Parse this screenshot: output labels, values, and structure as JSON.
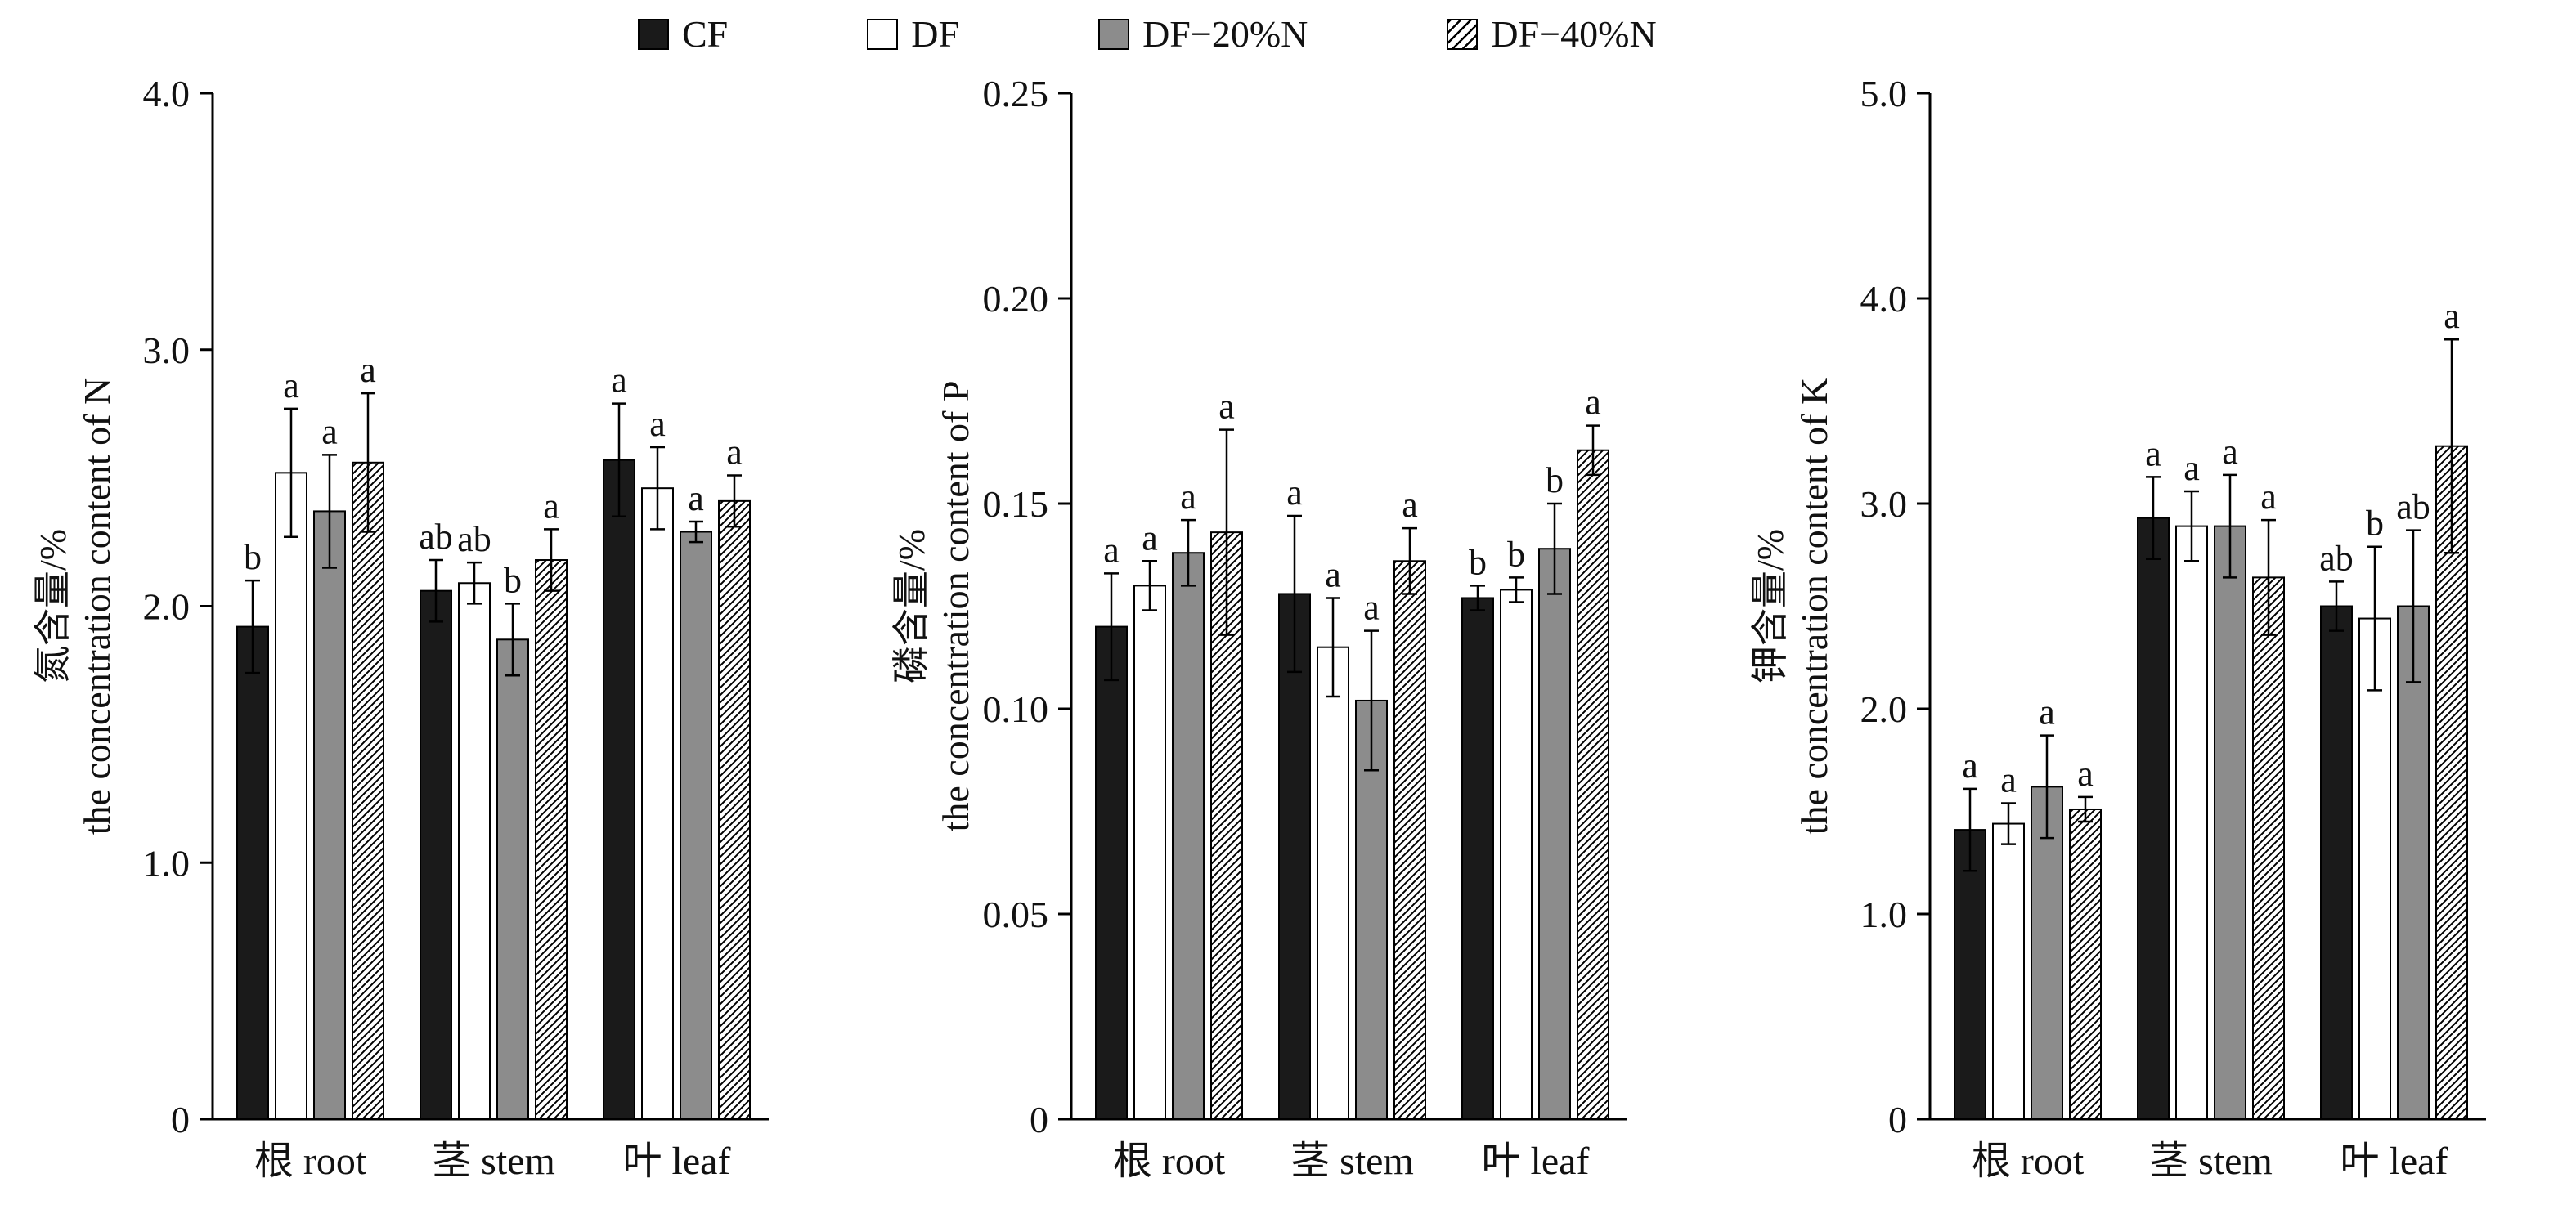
{
  "legend": {
    "items": [
      {
        "label": "CF",
        "fill": "#1a1a1a",
        "hatch": false
      },
      {
        "label": "DF",
        "fill": "#ffffff",
        "hatch": false
      },
      {
        "label": "DF−20%N",
        "fill": "#8c8c8c",
        "hatch": false
      },
      {
        "label": "DF−40%N",
        "fill": "#ffffff",
        "hatch": true
      }
    ]
  },
  "colors": {
    "bar_black": "#1a1a1a",
    "bar_white": "#ffffff",
    "bar_gray": "#8c8c8c",
    "outline": "#000000",
    "background": "#ffffff"
  },
  "chart_data": [
    {
      "type": "bar",
      "panel": "N",
      "ylabel_zh": "氮含量/%",
      "ylabel_en": "the concentration content of N",
      "ylim": [
        0,
        4.0
      ],
      "yticks": [
        0,
        1.0,
        2.0,
        3.0,
        4.0
      ],
      "ytick_labels": [
        "0",
        "1.0",
        "2.0",
        "3.0",
        "4.0"
      ],
      "categories": [
        "根 root",
        "茎 stem",
        "叶 leaf"
      ],
      "legend_position": "top",
      "grid": false,
      "series": [
        {
          "name": "CF",
          "fill": "#1a1a1a",
          "hatch": false,
          "values": [
            1.92,
            2.06,
            2.57
          ],
          "errors": [
            0.18,
            0.12,
            0.22
          ],
          "letters": [
            "b",
            "ab",
            "a"
          ]
        },
        {
          "name": "DF",
          "fill": "#ffffff",
          "hatch": false,
          "values": [
            2.52,
            2.09,
            2.46
          ],
          "errors": [
            0.25,
            0.08,
            0.16
          ],
          "letters": [
            "a",
            "ab",
            "a"
          ]
        },
        {
          "name": "DF−20%N",
          "fill": "#8c8c8c",
          "hatch": false,
          "values": [
            2.37,
            1.87,
            2.29
          ],
          "errors": [
            0.22,
            0.14,
            0.04
          ],
          "letters": [
            "a",
            "b",
            "a"
          ]
        },
        {
          "name": "DF−40%N",
          "fill": "#ffffff",
          "hatch": true,
          "values": [
            2.56,
            2.18,
            2.41
          ],
          "errors": [
            0.27,
            0.12,
            0.1
          ],
          "letters": [
            "a",
            "a",
            "a"
          ]
        }
      ]
    },
    {
      "type": "bar",
      "panel": "P",
      "ylabel_zh": "磷含量/%",
      "ylabel_en": "the concentration content of P",
      "ylim": [
        0,
        0.25
      ],
      "yticks": [
        0,
        0.05,
        0.1,
        0.15,
        0.2,
        0.25
      ],
      "ytick_labels": [
        "0",
        "0.05",
        "0.10",
        "0.15",
        "0.20",
        "0.25"
      ],
      "categories": [
        "根 root",
        "茎 stem",
        "叶 leaf"
      ],
      "legend_position": "top",
      "grid": false,
      "series": [
        {
          "name": "CF",
          "fill": "#1a1a1a",
          "hatch": false,
          "values": [
            0.12,
            0.128,
            0.127
          ],
          "errors": [
            0.013,
            0.019,
            0.003
          ],
          "letters": [
            "a",
            "a",
            "b"
          ]
        },
        {
          "name": "DF",
          "fill": "#ffffff",
          "hatch": false,
          "values": [
            0.13,
            0.115,
            0.129
          ],
          "errors": [
            0.006,
            0.012,
            0.003
          ],
          "letters": [
            "a",
            "a",
            "b"
          ]
        },
        {
          "name": "DF−20%N",
          "fill": "#8c8c8c",
          "hatch": false,
          "values": [
            0.138,
            0.102,
            0.139
          ],
          "errors": [
            0.008,
            0.017,
            0.011
          ],
          "letters": [
            "a",
            "a",
            "b"
          ]
        },
        {
          "name": "DF−40%N",
          "fill": "#ffffff",
          "hatch": true,
          "values": [
            0.143,
            0.136,
            0.163
          ],
          "errors": [
            0.025,
            0.008,
            0.006
          ],
          "letters": [
            "a",
            "a",
            "a"
          ]
        }
      ]
    },
    {
      "type": "bar",
      "panel": "K",
      "ylabel_zh": "钾含量/%",
      "ylabel_en": "the concentration content of K",
      "ylim": [
        0,
        5.0
      ],
      "yticks": [
        0,
        1.0,
        2.0,
        3.0,
        4.0,
        5.0
      ],
      "ytick_labels": [
        "0",
        "1.0",
        "2.0",
        "3.0",
        "4.0",
        "5.0"
      ],
      "categories": [
        "根 root",
        "茎 stem",
        "叶 leaf"
      ],
      "legend_position": "top",
      "grid": false,
      "series": [
        {
          "name": "CF",
          "fill": "#1a1a1a",
          "hatch": false,
          "values": [
            1.41,
            2.93,
            2.5
          ],
          "errors": [
            0.2,
            0.2,
            0.12
          ],
          "letters": [
            "a",
            "a",
            "ab"
          ]
        },
        {
          "name": "DF",
          "fill": "#ffffff",
          "hatch": false,
          "values": [
            1.44,
            2.89,
            2.44
          ],
          "errors": [
            0.1,
            0.17,
            0.35
          ],
          "letters": [
            "a",
            "a",
            "b"
          ]
        },
        {
          "name": "DF−20%N",
          "fill": "#8c8c8c",
          "hatch": false,
          "values": [
            1.62,
            2.89,
            2.5
          ],
          "errors": [
            0.25,
            0.25,
            0.37
          ],
          "letters": [
            "a",
            "a",
            "ab"
          ]
        },
        {
          "name": "DF−40%N",
          "fill": "#ffffff",
          "hatch": true,
          "values": [
            1.51,
            2.64,
            3.28
          ],
          "errors": [
            0.06,
            0.28,
            0.52
          ],
          "letters": [
            "a",
            "a",
            "a"
          ]
        }
      ]
    }
  ]
}
